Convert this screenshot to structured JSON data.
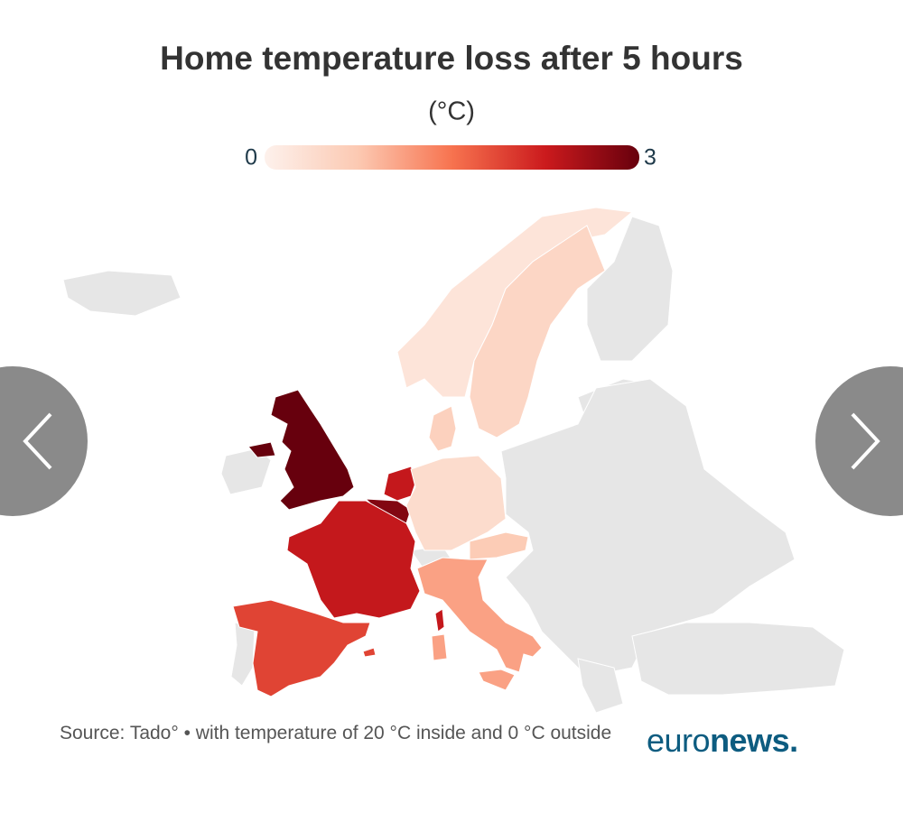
{
  "chart_data": {
    "type": "choropleth",
    "title": "Home temperature loss after 5 hours",
    "subtitle": "(°C)",
    "range": [
      0,
      3
    ],
    "colors": [
      "#fdf1ec",
      "#fcc9b2",
      "#f7734f",
      "#cb1a1d",
      "#67000d"
    ],
    "values": [
      3,
      2.3,
      2.8,
      2.3,
      1.9,
      1.1,
      0.4,
      0.6,
      0.7,
      0.25,
      0.5
    ],
    "no_data_color": "#e6e6e6",
    "source": "Source: Tado° • with temperature of 20 °C inside and 0 °C outside",
    "logo": {
      "light": "euro",
      "bold": "news."
    }
  }
}
